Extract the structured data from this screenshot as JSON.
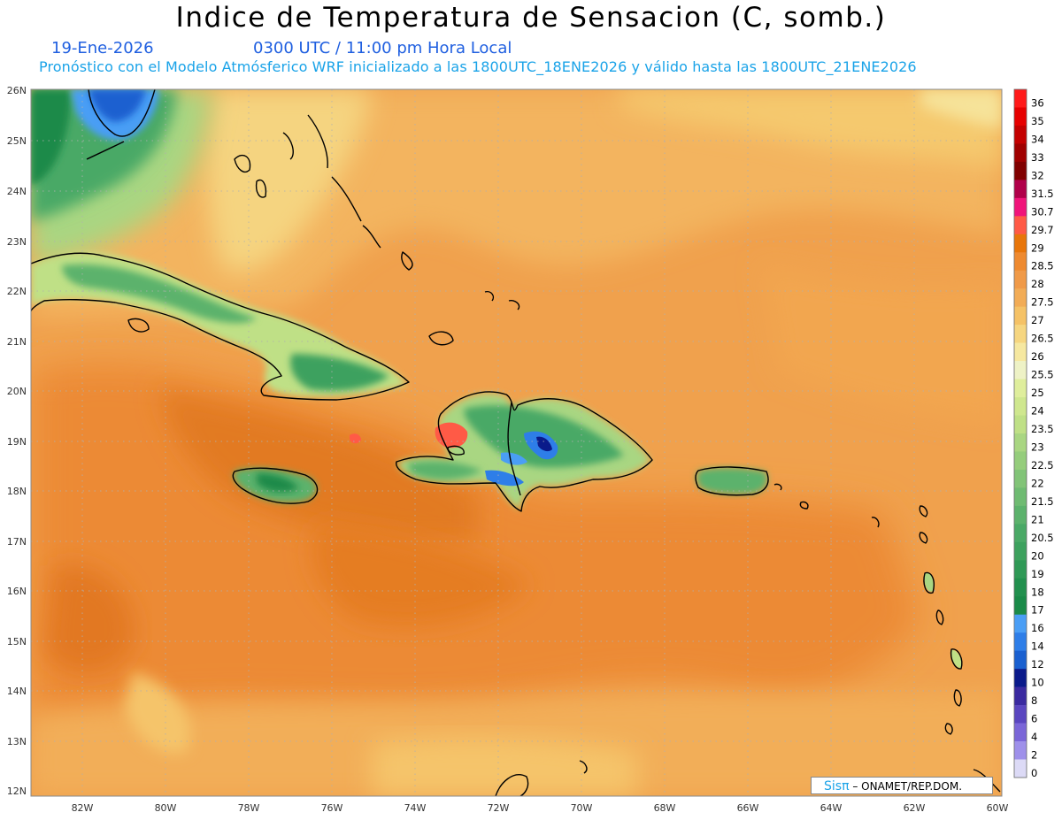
{
  "title": "Indice de Temperatura de Sensacion (C, somb.)",
  "date": "19-Ene-2026",
  "time": "0300 UTC / 11:00 pm Hora Local",
  "subtitle": "Pronóstico con el Modelo Atmósferico WRF inicializado a las 1800UTC_18ENE2026 y válido hasta las  1800UTC_21ENE2026",
  "credit": {
    "brand": "Sisπ",
    "text": "– ONAMET/REP.DOM."
  },
  "lat_labels": [
    "26N",
    "25N",
    "24N",
    "23N",
    "22N",
    "21N",
    "20N",
    "19N",
    "18N",
    "17N",
    "16N",
    "15N",
    "14N",
    "13N",
    "12N"
  ],
  "lon_labels": [
    "82W",
    "80W",
    "78W",
    "76W",
    "74W",
    "72W",
    "70W",
    "68W",
    "66W",
    "64W",
    "62W",
    "60W"
  ],
  "colorbar": [
    {
      "label": "36",
      "color": "#ff1a1a"
    },
    {
      "label": "35",
      "color": "#e60000"
    },
    {
      "label": "34",
      "color": "#c40000"
    },
    {
      "label": "33",
      "color": "#a00000"
    },
    {
      "label": "32",
      "color": "#800000"
    },
    {
      "label": "31.5",
      "color": "#b0004a"
    },
    {
      "label": "30.7",
      "color": "#f0147a"
    },
    {
      "label": "29.7",
      "color": "#ff5a46"
    },
    {
      "label": "29",
      "color": "#e8760a"
    },
    {
      "label": "28.5",
      "color": "#ee8a30"
    },
    {
      "label": "28",
      "color": "#f09a48"
    },
    {
      "label": "27.5",
      "color": "#f2ac56"
    },
    {
      "label": "27",
      "color": "#f5c266"
    },
    {
      "label": "26.5",
      "color": "#f6d680"
    },
    {
      "label": "26",
      "color": "#f6e8a0"
    },
    {
      "label": "25.5",
      "color": "#eef2c6"
    },
    {
      "label": "25",
      "color": "#dfee9c"
    },
    {
      "label": "24",
      "color": "#cfe78e"
    },
    {
      "label": "23.5",
      "color": "#bfe086"
    },
    {
      "label": "23",
      "color": "#a9d682"
    },
    {
      "label": "22.5",
      "color": "#95cd7c"
    },
    {
      "label": "22",
      "color": "#82c478"
    },
    {
      "label": "21.5",
      "color": "#6fbb72"
    },
    {
      "label": "21",
      "color": "#5cb26c"
    },
    {
      "label": "20.5",
      "color": "#4aa966"
    },
    {
      "label": "20",
      "color": "#3da15e"
    },
    {
      "label": "19",
      "color": "#2f9956"
    },
    {
      "label": "18",
      "color": "#22904e"
    },
    {
      "label": "17",
      "color": "#1a8a48"
    },
    {
      "label": "16",
      "color": "#4a9ef5"
    },
    {
      "label": "14",
      "color": "#2e7ee8"
    },
    {
      "label": "12",
      "color": "#1a60d0"
    },
    {
      "label": "10",
      "color": "#0a1a8a"
    },
    {
      "label": "8",
      "color": "#3a2aa0"
    },
    {
      "label": "6",
      "color": "#5a46c0"
    },
    {
      "label": "4",
      "color": "#7a66d8"
    },
    {
      "label": "2",
      "color": "#9e90ea"
    },
    {
      "label": "0",
      "color": "#dcdaf6"
    }
  ]
}
